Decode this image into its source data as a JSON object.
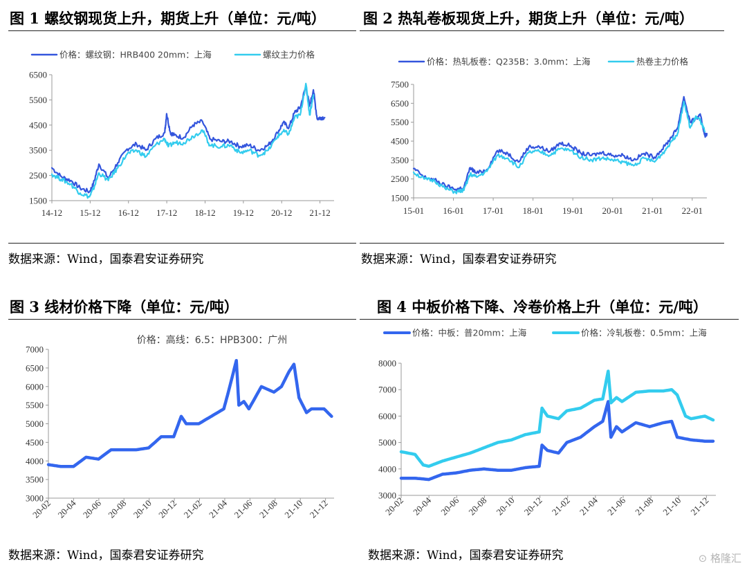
{
  "panels": [
    {
      "title": "图 1 螺纹钢现货上升，期货上升（单位：元/吨）",
      "source": "数据来源：Wind，国泰君安证券研究"
    },
    {
      "title": "图 2 热轧卷板现货上升，期货上升（单位：元/吨）",
      "source": "数据来源：Wind，国泰君安证券研究"
    },
    {
      "title": "图 3  线材价格下降（单位：元/吨）",
      "source": "数据来源：Wind，国泰君安证券研究"
    },
    {
      "title": "图 4  中板价格下降、冷卷价格上升（单位：元/吨）",
      "source": "数据来源：Wind，国泰君安证券研究"
    }
  ],
  "watermark": "格隆汇",
  "chart_data": [
    {
      "type": "line",
      "ylim": [
        1500,
        6500
      ],
      "yticks": [
        1500,
        2500,
        3500,
        4500,
        5500,
        6500
      ],
      "x_ticks": [
        "14-12",
        "15-12",
        "16-12",
        "17-12",
        "18-12",
        "19-12",
        "20-12",
        "21-12"
      ],
      "x_range": [
        0,
        7.5
      ],
      "grid": false,
      "legend": "top",
      "series": [
        {
          "name": "价格：螺纹钢：HRB400 20mm：上海",
          "color": "#3355dd",
          "x": [
            0,
            0.25,
            0.5,
            0.75,
            1.0,
            1.1,
            1.25,
            1.5,
            1.75,
            2.0,
            2.25,
            2.5,
            2.75,
            3.0,
            3.05,
            3.15,
            3.25,
            3.5,
            3.75,
            4.0,
            4.2,
            4.5,
            4.75,
            5.0,
            5.25,
            5.5,
            5.75,
            6.0,
            6.15,
            6.3,
            6.45,
            6.6,
            6.75,
            6.85,
            6.95,
            7.05,
            7.15,
            7.25
          ],
          "y": [
            2800,
            2450,
            2300,
            2000,
            1850,
            2150,
            2950,
            2400,
            3000,
            3550,
            3750,
            3500,
            3950,
            4200,
            4950,
            4200,
            4100,
            4000,
            4500,
            4650,
            3950,
            3850,
            3850,
            3650,
            3700,
            3500,
            3700,
            4200,
            4600,
            4400,
            5000,
            5200,
            6050,
            5250,
            5900,
            4750,
            4800,
            4800
          ]
        },
        {
          "name": "螺纹主力价格",
          "color": "#33ccee",
          "x": [
            0,
            0.25,
            0.5,
            0.75,
            1.0,
            1.1,
            1.25,
            1.5,
            1.75,
            2.0,
            2.25,
            2.5,
            2.75,
            3.0,
            3.1,
            3.25,
            3.5,
            3.75,
            4.0,
            4.2,
            4.5,
            4.75,
            5.0,
            5.25,
            5.5,
            5.75,
            6.0,
            6.15,
            6.3,
            6.45,
            6.6,
            6.75,
            6.85,
            6.95
          ],
          "y": [
            2550,
            2350,
            2150,
            1800,
            1650,
            1950,
            2600,
            2300,
            2800,
            3350,
            3500,
            3250,
            3700,
            3950,
            3650,
            3800,
            3800,
            4050,
            4300,
            3700,
            3650,
            3700,
            3400,
            3500,
            3300,
            3500,
            4050,
            4250,
            4150,
            4800,
            4900,
            6150,
            4900,
            5700
          ]
        }
      ]
    },
    {
      "type": "line",
      "ylim": [
        1500,
        7500
      ],
      "yticks": [
        1500,
        2500,
        3500,
        4500,
        5500,
        6500,
        7500
      ],
      "x_ticks": [
        "15-01",
        "16-01",
        "17-01",
        "18-01",
        "19-01",
        "20-01",
        "21-01",
        "22-01"
      ],
      "x_range": [
        0,
        7.0
      ],
      "grid": false,
      "legend": "top",
      "series": [
        {
          "name": "价格：热轧板卷：Q235B：3.0mm：上海",
          "color": "#3355dd",
          "x": [
            0,
            0.25,
            0.5,
            0.75,
            1.0,
            1.2,
            1.35,
            1.5,
            1.75,
            2.0,
            2.25,
            2.5,
            2.75,
            3.0,
            3.25,
            3.5,
            3.75,
            4.0,
            4.25,
            4.5,
            4.75,
            5.0,
            5.25,
            5.5,
            5.75,
            6.0,
            6.15,
            6.3,
            6.45,
            6.6,
            6.75,
            6.85,
            6.95,
            7.0
          ],
          "y": [
            3050,
            2600,
            2450,
            2150,
            1950,
            2050,
            3100,
            2800,
            3000,
            4000,
            3850,
            3400,
            4200,
            4200,
            3950,
            4400,
            4250,
            3850,
            3750,
            3900,
            3750,
            3750,
            3500,
            3850,
            3650,
            4250,
            4700,
            5200,
            6850,
            5500,
            5700,
            5850,
            4800,
            4900
          ]
        },
        {
          "name": "热卷主力价格",
          "color": "#33ccee",
          "x": [
            0,
            0.25,
            0.5,
            0.75,
            1.0,
            1.2,
            1.35,
            1.5,
            1.75,
            2.0,
            2.25,
            2.5,
            2.75,
            3.0,
            3.25,
            3.5,
            3.75,
            4.0,
            4.25,
            4.5,
            4.75,
            5.0,
            5.25,
            5.5,
            5.75,
            6.0,
            6.15,
            6.3,
            6.45,
            6.6,
            6.75,
            6.85,
            6.95
          ],
          "y": [
            2850,
            2500,
            2400,
            2000,
            1800,
            1900,
            2750,
            2600,
            2900,
            3750,
            3600,
            3100,
            3900,
            3950,
            3750,
            4100,
            4000,
            3650,
            3500,
            3600,
            3500,
            3400,
            3200,
            3600,
            3400,
            4000,
            4500,
            4900,
            6600,
            5200,
            5800,
            5550,
            5000
          ]
        }
      ]
    },
    {
      "type": "line",
      "ylim": [
        3000,
        7000
      ],
      "yticks": [
        3000,
        3500,
        4000,
        4500,
        5000,
        5500,
        6000,
        6500,
        7000
      ],
      "x_ticks": [
        "20-02",
        "20-04",
        "20-06",
        "20-08",
        "20-10",
        "20-12",
        "21-02",
        "21-04",
        "21-06",
        "21-08",
        "21-10",
        "21-12"
      ],
      "x_range": [
        0,
        11.4
      ],
      "grid": false,
      "legend": "top",
      "series": [
        {
          "name": "价格：高线：6.5：HPB300：广州",
          "color": "#3366ee",
          "x": [
            0,
            0.5,
            1.0,
            1.5,
            2.0,
            2.5,
            3.0,
            3.5,
            4.0,
            4.5,
            5.0,
            5.3,
            5.5,
            6.0,
            6.5,
            7.0,
            7.2,
            7.5,
            7.6,
            7.8,
            8.0,
            8.5,
            9.0,
            9.3,
            9.6,
            9.8,
            10.0,
            10.3,
            10.5,
            11.0,
            11.3
          ],
          "y": [
            3900,
            3850,
            3850,
            4100,
            4050,
            4300,
            4300,
            4300,
            4350,
            4650,
            4650,
            5200,
            5000,
            5000,
            5200,
            5400,
            5900,
            6700,
            5500,
            5600,
            5400,
            6000,
            5850,
            6000,
            6400,
            6600,
            5700,
            5300,
            5400,
            5400,
            5200
          ]
        }
      ]
    },
    {
      "type": "line",
      "ylim": [
        3000,
        8000
      ],
      "yticks": [
        3000,
        4000,
        5000,
        6000,
        7000,
        8000
      ],
      "x_ticks": [
        "20-02",
        "20-04",
        "20-06",
        "20-08",
        "20-10",
        "20-12",
        "21-02",
        "21-04",
        "21-06",
        "21-08",
        "21-10",
        "21-12"
      ],
      "x_range": [
        0,
        11.4
      ],
      "grid": false,
      "legend": "top",
      "series": [
        {
          "name": "价格：中板：普20mm：上海",
          "color": "#3366ee",
          "x": [
            0,
            0.5,
            1.0,
            1.5,
            2.0,
            2.5,
            3.0,
            3.5,
            4.0,
            4.5,
            5.0,
            5.1,
            5.3,
            5.7,
            6.0,
            6.5,
            7.0,
            7.3,
            7.5,
            7.6,
            7.8,
            8.0,
            8.5,
            9.0,
            9.5,
            9.8,
            10.0,
            10.5,
            11.0,
            11.3
          ],
          "y": [
            3650,
            3650,
            3600,
            3800,
            3850,
            3950,
            4000,
            3950,
            3950,
            4050,
            4100,
            4900,
            4700,
            4600,
            5000,
            5200,
            5600,
            5800,
            6550,
            5200,
            5600,
            5400,
            5750,
            5600,
            5750,
            5800,
            5200,
            5100,
            5050,
            5050
          ]
        },
        {
          "name": "价格：冷轧板卷：0.5mm：上海",
          "color": "#33ccee",
          "x": [
            0,
            0.5,
            0.8,
            1.0,
            1.5,
            2.0,
            2.5,
            3.0,
            3.5,
            4.0,
            4.5,
            5.0,
            5.1,
            5.3,
            5.7,
            6.0,
            6.5,
            7.0,
            7.3,
            7.5,
            7.6,
            7.8,
            8.0,
            8.5,
            9.0,
            9.5,
            9.8,
            10.0,
            10.3,
            10.5,
            11.0,
            11.3
          ],
          "y": [
            4650,
            4550,
            4150,
            4100,
            4300,
            4450,
            4600,
            4800,
            5000,
            5100,
            5300,
            5400,
            6300,
            6000,
            5900,
            6200,
            6300,
            6600,
            6650,
            7700,
            6500,
            6700,
            6550,
            6900,
            6950,
            6950,
            7000,
            6800,
            6000,
            5900,
            6000,
            5850
          ]
        }
      ]
    }
  ]
}
